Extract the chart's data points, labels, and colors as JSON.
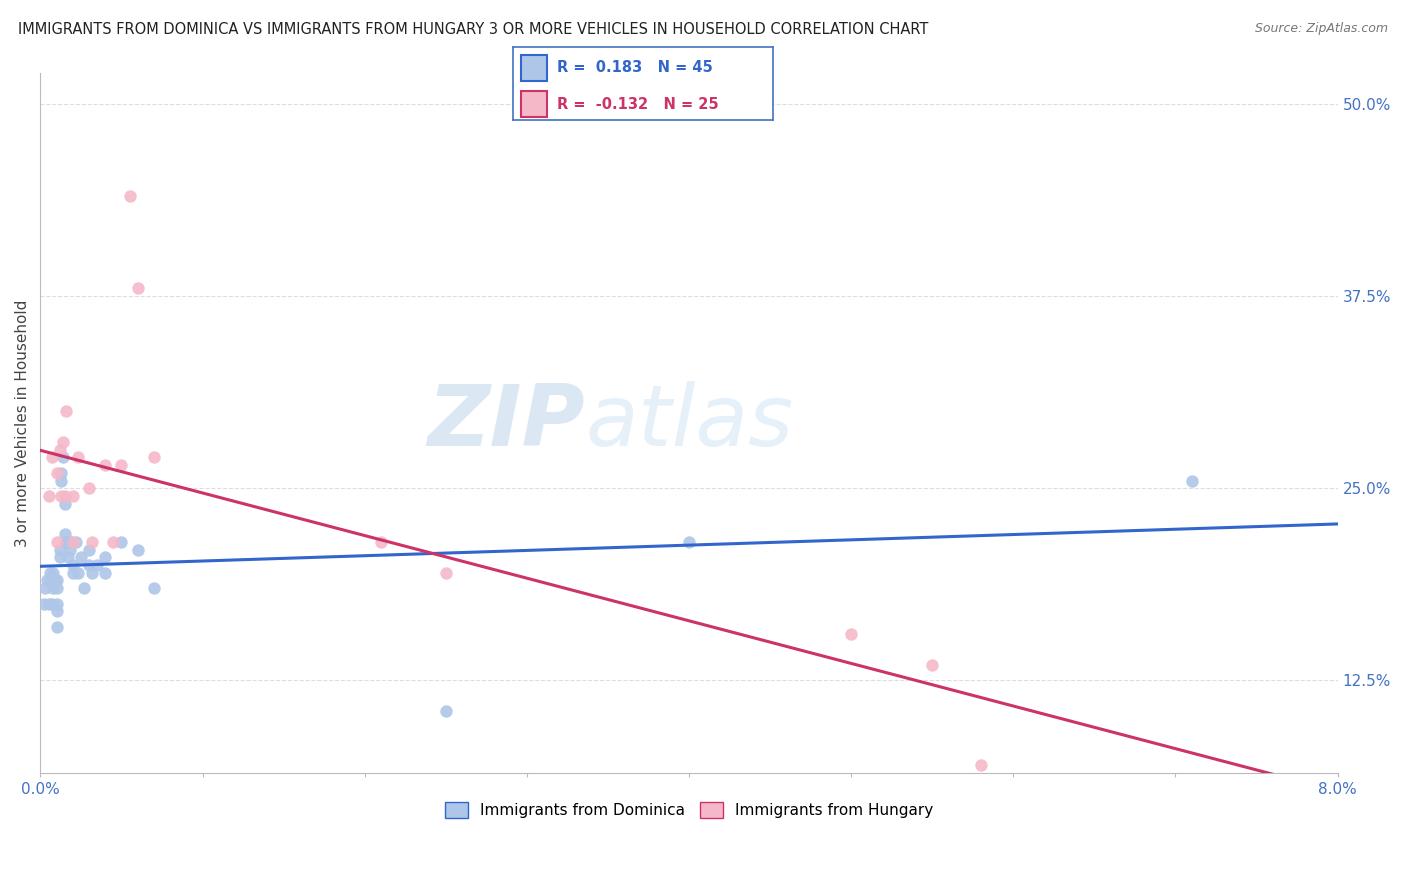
{
  "title": "IMMIGRANTS FROM DOMINICA VS IMMIGRANTS FROM HUNGARY 3 OR MORE VEHICLES IN HOUSEHOLD CORRELATION CHART",
  "source": "Source: ZipAtlas.com",
  "series": [
    {
      "name": "Immigrants from Dominica",
      "R": 0.183,
      "N": 45,
      "scatter_color": "#aec6e8",
      "line_color": "#3366cc",
      "x": [
        0.0002,
        0.0003,
        0.0004,
        0.0005,
        0.0006,
        0.0006,
        0.0007,
        0.0008,
        0.0008,
        0.0009,
        0.001,
        0.001,
        0.001,
        0.001,
        0.001,
        0.0012,
        0.0012,
        0.0013,
        0.0013,
        0.0014,
        0.0015,
        0.0015,
        0.0016,
        0.0017,
        0.0017,
        0.0018,
        0.0019,
        0.002,
        0.002,
        0.0022,
        0.0023,
        0.0025,
        0.0027,
        0.003,
        0.003,
        0.0032,
        0.0035,
        0.004,
        0.004,
        0.005,
        0.006,
        0.007,
        0.025,
        0.04,
        0.071
      ],
      "y": [
        0.175,
        0.185,
        0.19,
        0.175,
        0.195,
        0.19,
        0.175,
        0.195,
        0.185,
        0.19,
        0.19,
        0.185,
        0.175,
        0.17,
        0.16,
        0.21,
        0.205,
        0.26,
        0.255,
        0.27,
        0.24,
        0.22,
        0.215,
        0.215,
        0.205,
        0.21,
        0.215,
        0.2,
        0.195,
        0.215,
        0.195,
        0.205,
        0.185,
        0.21,
        0.2,
        0.195,
        0.2,
        0.205,
        0.195,
        0.215,
        0.21,
        0.185,
        0.105,
        0.215,
        0.255
      ]
    },
    {
      "name": "Immigrants from Hungary",
      "R": -0.132,
      "N": 25,
      "scatter_color": "#f4b8c8",
      "line_color": "#cc3366",
      "x": [
        0.0005,
        0.0007,
        0.001,
        0.001,
        0.0012,
        0.0013,
        0.0014,
        0.0015,
        0.0016,
        0.002,
        0.002,
        0.0023,
        0.003,
        0.0032,
        0.004,
        0.0045,
        0.005,
        0.0055,
        0.006,
        0.007,
        0.021,
        0.025,
        0.05,
        0.055,
        0.058
      ],
      "y": [
        0.245,
        0.27,
        0.215,
        0.26,
        0.275,
        0.245,
        0.28,
        0.245,
        0.3,
        0.215,
        0.245,
        0.27,
        0.25,
        0.215,
        0.265,
        0.215,
        0.265,
        0.44,
        0.38,
        0.27,
        0.215,
        0.195,
        0.155,
        0.135,
        0.07
      ]
    }
  ],
  "xlim": [
    0.0,
    0.08
  ],
  "ylim": [
    0.065,
    0.52
  ],
  "y_tick_vals": [
    0.125,
    0.25,
    0.375,
    0.5
  ],
  "y_tick_labels": [
    "12.5%",
    "25.0%",
    "37.5%",
    "50.0%"
  ],
  "x_tick_vals": [
    0.0,
    0.01,
    0.02,
    0.03,
    0.04,
    0.05,
    0.06,
    0.07,
    0.08
  ],
  "x_label_show": [
    true,
    false,
    false,
    false,
    false,
    false,
    false,
    false,
    true
  ],
  "x_label_vals": [
    "0.0%",
    "",
    "",
    "",
    "",
    "",
    "",
    "",
    "8.0%"
  ],
  "watermark_text": "ZIPatlas",
  "background_color": "#ffffff",
  "grid_color": "#dddddd",
  "axis_label_color": "#4472c4",
  "legend_border_color": "#4472c4",
  "title_color": "#222222",
  "source_color": "#777777",
  "ylabel": "3 or more Vehicles in Household"
}
